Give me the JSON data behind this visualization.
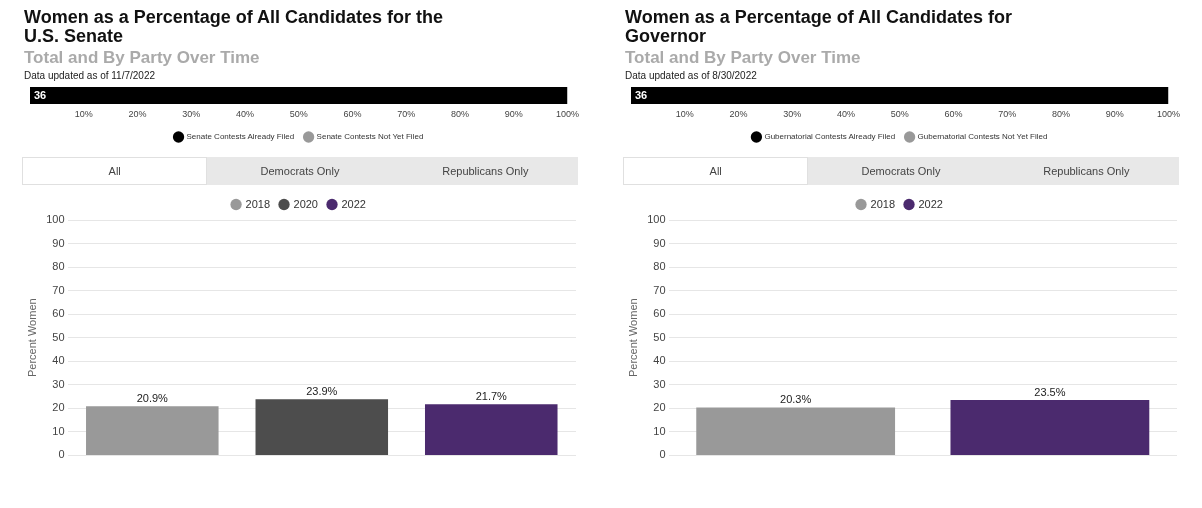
{
  "chart_data": [
    {
      "type": "bar",
      "orientation": "horizontal",
      "title": "Women as a Percentage of All Candidates for the U.S. Senate",
      "subtitle": "Total and By Party Over Time",
      "annotations": [
        "Data updated as of 11/7/2022",
        "36"
      ],
      "categories": [
        null
      ],
      "series": [
        {
          "name": "Senate Contests Already Filed",
          "color": "#000000",
          "values": [
            100
          ]
        },
        {
          "name": "Senate Contests Not Yet Filed",
          "color": "#999999",
          "values": [
            null
          ]
        }
      ],
      "xlim": [
        0,
        100
      ],
      "xticks": [
        {
          "value": 10,
          "label": "10%"
        },
        {
          "value": 20,
          "label": "20%"
        },
        {
          "value": 30,
          "label": "30%"
        },
        {
          "value": 40,
          "label": "40%"
        },
        {
          "value": 50,
          "label": "50%"
        },
        {
          "value": 60,
          "label": "60%"
        },
        {
          "value": 70,
          "label": "70%"
        },
        {
          "value": 80,
          "label": "80%"
        },
        {
          "value": 90,
          "label": "90%"
        },
        {
          "value": 100,
          "label": "100%"
        }
      ],
      "tick_labels": "x",
      "legend": "bottom"
    },
    {
      "type": "bar",
      "annotations": [
        "All",
        "Democrats Only",
        "Republicans Only"
      ],
      "ylabel": "Percent Women",
      "categories": [
        null,
        null,
        null
      ],
      "series": [
        {
          "name": "2018",
          "color": "#999999",
          "values": [
            20.9,
            null,
            null
          ],
          "value_labels": [
            "20.9%",
            null,
            null
          ]
        },
        {
          "name": "2020",
          "color": "#4d4d4d",
          "values": [
            null,
            23.9,
            null
          ],
          "value_labels": [
            null,
            "23.9%",
            null
          ]
        },
        {
          "name": "2022",
          "color": "#4b2a6e",
          "values": [
            null,
            null,
            21.7
          ],
          "value_labels": [
            null,
            null,
            "21.7%"
          ]
        }
      ],
      "ylim": [
        0,
        100
      ],
      "yticks": [
        0,
        10,
        20,
        30,
        40,
        50,
        60,
        70,
        80,
        90,
        100
      ],
      "grid": "y",
      "legend": "top",
      "tick_labels": "y"
    },
    {
      "type": "bar",
      "orientation": "horizontal",
      "title": "Women as a Percentage of All Candidates for Governor",
      "subtitle": "Total and By Party Over Time",
      "annotations": [
        "Data updated as of 8/30/2022",
        "36"
      ],
      "categories": [
        null
      ],
      "series": [
        {
          "name": "Gubernatorial Contests Already Filed",
          "color": "#000000",
          "values": [
            100
          ]
        },
        {
          "name": "Gubernatorial Contests Not Yet Filed",
          "color": "#999999",
          "values": [
            null
          ]
        }
      ],
      "xlim": [
        0,
        100
      ],
      "xticks": [
        {
          "value": 10,
          "label": "10%"
        },
        {
          "value": 20,
          "label": "20%"
        },
        {
          "value": 30,
          "label": "30%"
        },
        {
          "value": 40,
          "label": "40%"
        },
        {
          "value": 50,
          "label": "50%"
        },
        {
          "value": 60,
          "label": "60%"
        },
        {
          "value": 70,
          "label": "70%"
        },
        {
          "value": 80,
          "label": "80%"
        },
        {
          "value": 90,
          "label": "90%"
        },
        {
          "value": 100,
          "label": "100%"
        }
      ],
      "tick_labels": "x",
      "legend": "bottom"
    },
    {
      "type": "bar",
      "annotations": [
        "All",
        "Democrats Only",
        "Republicans Only"
      ],
      "ylabel": "Percent Women",
      "categories": [
        null,
        null
      ],
      "series": [
        {
          "name": "2018",
          "color": "#999999",
          "values": [
            20.3,
            null
          ],
          "value_labels": [
            "20.3%",
            null
          ]
        },
        {
          "name": "2022",
          "color": "#4b2a6e",
          "values": [
            null,
            23.5
          ],
          "value_labels": [
            null,
            "23.5%"
          ]
        }
      ],
      "ylim": [
        0,
        100
      ],
      "yticks": [
        0,
        10,
        20,
        30,
        40,
        50,
        60,
        70,
        80,
        90,
        100
      ],
      "grid": "y",
      "legend": "top",
      "tick_labels": "y"
    }
  ]
}
